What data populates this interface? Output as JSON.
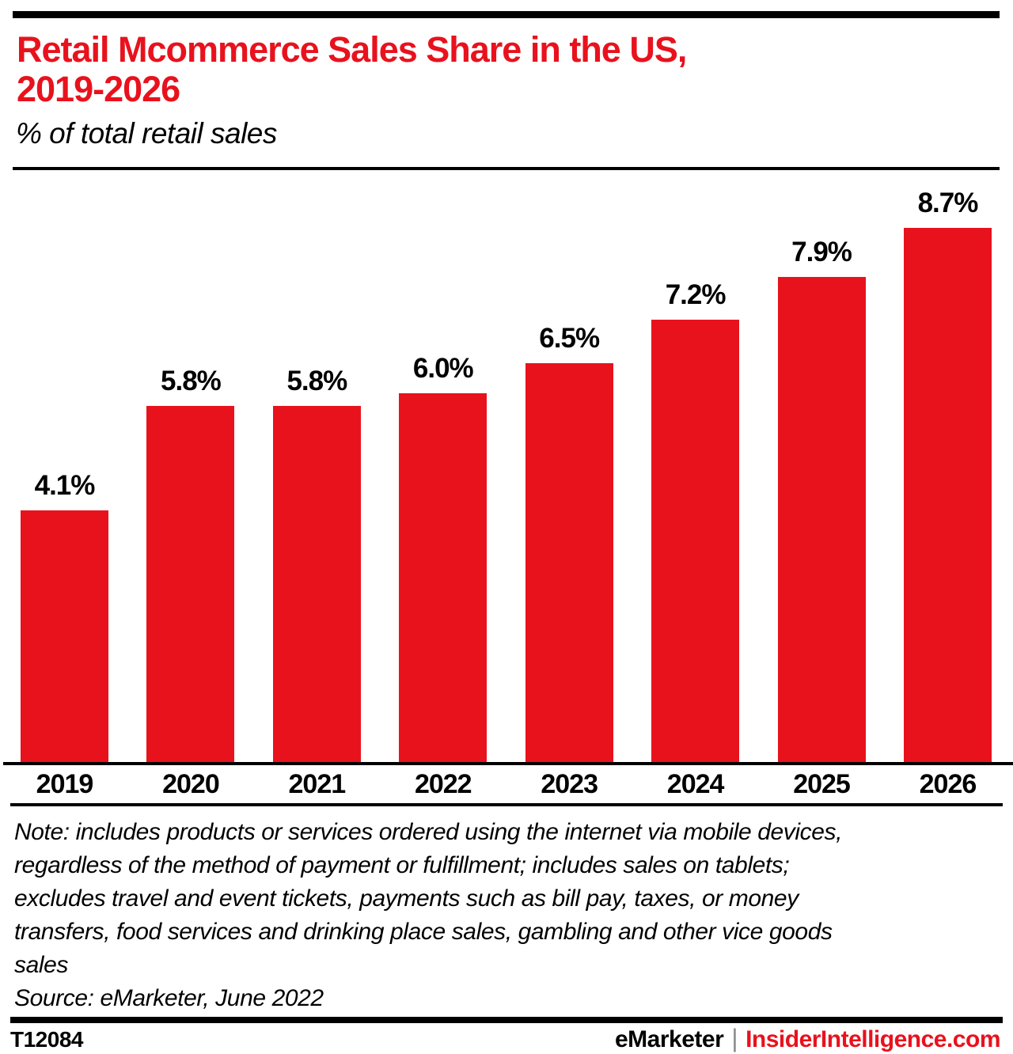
{
  "accent_red": "#e8121d",
  "header": {
    "title_line1": "Retail Mcommerce Sales Share in the US,",
    "title_line2": "2019-2026",
    "subtitle": "% of total retail sales"
  },
  "chart_data": {
    "type": "bar",
    "title": "Retail Mcommerce Sales Share in the US, 2019-2026",
    "ylabel": "% of total retail sales",
    "xlabel": "",
    "categories": [
      "2019",
      "2020",
      "2021",
      "2022",
      "2023",
      "2024",
      "2025",
      "2026"
    ],
    "values": [
      4.1,
      5.8,
      5.8,
      6.0,
      6.5,
      7.2,
      7.9,
      8.7
    ],
    "data_labels": [
      "4.1%",
      "5.8%",
      "5.8%",
      "6.0%",
      "6.5%",
      "7.2%",
      "7.9%",
      "8.7%"
    ],
    "bar_color": "#e8121d",
    "ylim": [
      0,
      8.7
    ],
    "grid": false,
    "legend_position": "none"
  },
  "footnote": {
    "note_lines": [
      "Note: includes products or services ordered using the internet via mobile devices,",
      "regardless of the method of payment or fulfillment; includes sales on tablets;",
      "excludes travel and event tickets, payments such as bill pay, taxes, or money",
      "transfers, food services and drinking place sales, gambling and other vice goods",
      "sales"
    ],
    "source": "Source: eMarketer, June 2022"
  },
  "footer": {
    "chart_id": "T12084",
    "brand_left": "eMarketer",
    "divider": "|",
    "brand_right": "InsiderIntelligence.com"
  }
}
